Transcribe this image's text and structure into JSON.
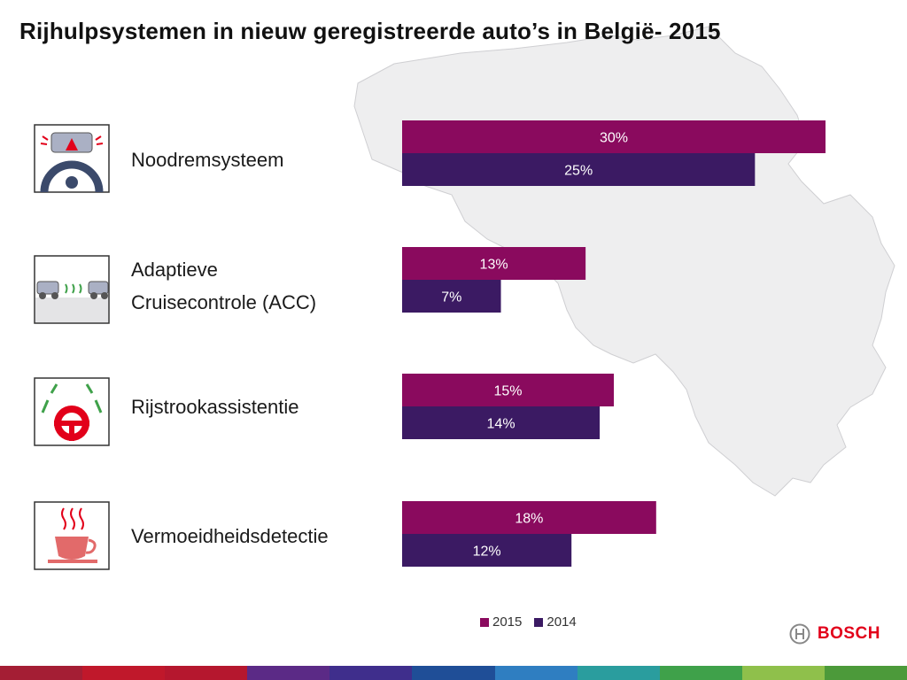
{
  "title": "Rijhulpsystemen in nieuw geregistreerde auto’s in België- 2015",
  "chart_data": {
    "type": "bar",
    "orientation": "horizontal",
    "categories": [
      "Noodremsysteem",
      "Adaptieve Cruisecontrole (ACC)",
      "Rijstrookassistentie",
      "Vermoeidheidsdetectie"
    ],
    "category_lines": [
      [
        "Noodremsysteem"
      ],
      [
        "Adaptieve",
        "Cruisecontrole (ACC)"
      ],
      [
        "Rijstrookassistentie"
      ],
      [
        "Vermoeidheidsdetectie"
      ]
    ],
    "series": [
      {
        "name": "2015",
        "color": "#8a0a5e",
        "values": [
          30,
          13,
          15,
          18
        ],
        "labels": [
          "30%",
          "13%",
          "15%",
          "18%"
        ]
      },
      {
        "name": "2014",
        "color": "#3b1a63",
        "values": [
          25,
          7,
          14,
          12
        ],
        "labels": [
          "25%",
          "7%",
          "14%",
          "12%"
        ]
      }
    ],
    "xlim": [
      0,
      30
    ],
    "unit": "%",
    "legend_position": "bottom"
  },
  "icons": [
    "emergency-brake-icon",
    "adaptive-cruise-control-icon",
    "lane-assist-icon",
    "fatigue-detection-icon"
  ],
  "brand": {
    "name": "BOSCH",
    "color": "#e2001a"
  },
  "footer_colors": [
    "#a41e34",
    "#c0182b",
    "#b5172e",
    "#5b2a86",
    "#3f2e8c",
    "#1f4e97",
    "#2f7ec1",
    "#2a9d9e",
    "#3fa14a",
    "#8fc04b",
    "#4c9a3a"
  ]
}
